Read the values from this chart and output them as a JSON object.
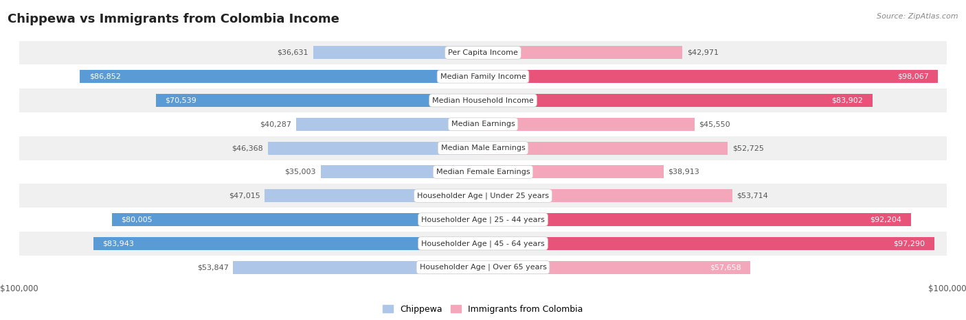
{
  "title": "Chippewa vs Immigrants from Colombia Income",
  "source": "Source: ZipAtlas.com",
  "categories": [
    "Per Capita Income",
    "Median Family Income",
    "Median Household Income",
    "Median Earnings",
    "Median Male Earnings",
    "Median Female Earnings",
    "Householder Age | Under 25 years",
    "Householder Age | 25 - 44 years",
    "Householder Age | 45 - 64 years",
    "Householder Age | Over 65 years"
  ],
  "chippewa_values": [
    36631,
    86852,
    70539,
    40287,
    46368,
    35003,
    47015,
    80005,
    83943,
    53847
  ],
  "colombia_values": [
    42971,
    98067,
    83902,
    45550,
    52725,
    38913,
    53714,
    92204,
    97290,
    57658
  ],
  "chippewa_labels": [
    "$36,631",
    "$86,852",
    "$70,539",
    "$40,287",
    "$46,368",
    "$35,003",
    "$47,015",
    "$80,005",
    "$83,943",
    "$53,847"
  ],
  "colombia_labels": [
    "$42,971",
    "$98,067",
    "$83,902",
    "$45,550",
    "$52,725",
    "$38,913",
    "$53,714",
    "$92,204",
    "$97,290",
    "$57,658"
  ],
  "max_value": 100000,
  "chippewa_color_light": "#aec6e8",
  "chippewa_color_dark": "#5b9bd5",
  "colombia_color_light": "#f4a7ba",
  "colombia_color_dark": "#e8537a",
  "bg_color": "#ffffff",
  "row_bg_alt": "#f0f0f0",
  "row_bg_white": "#ffffff",
  "title_fontsize": 13,
  "label_fontsize": 8,
  "category_fontsize": 8,
  "axis_label_fontsize": 8.5,
  "legend_fontsize": 9,
  "source_fontsize": 8,
  "bar_height": 0.55,
  "inside_label_threshold": 55000,
  "inside_label_color": "#ffffff",
  "outside_label_color": "#555555"
}
